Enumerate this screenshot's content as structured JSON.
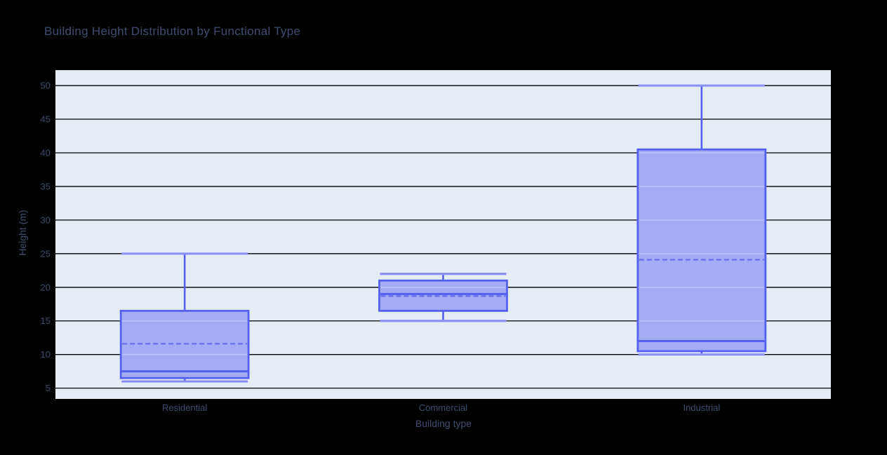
{
  "chart_data": {
    "type": "box",
    "title": "Building Height Distribution by Functional Type",
    "xlabel": "Building type",
    "ylabel": "Height (m)",
    "categories": [
      "Residential",
      "Commercial",
      "Industrial"
    ],
    "series": [
      {
        "name": "Residential",
        "min": 6,
        "q1": 6.5,
        "median": 7.5,
        "q3": 16.5,
        "max": 25,
        "mean": 11.6
      },
      {
        "name": "Commercial",
        "min": 15,
        "q1": 16.5,
        "median": 19,
        "q3": 21,
        "max": 22,
        "mean": 18.7
      },
      {
        "name": "Industrial",
        "min": 10,
        "q1": 10.5,
        "median": 12,
        "q3": 40.5,
        "max": 50,
        "mean": 24.1
      }
    ],
    "yticks": [
      5,
      10,
      15,
      20,
      25,
      30,
      35,
      40,
      45,
      50
    ],
    "ylim": [
      3.4,
      52.3
    ],
    "grid": true,
    "legend": false,
    "mean_line_style": "dashed",
    "colors": {
      "paper_bg": "#000000",
      "plot_bg": "#e5ecf6",
      "grid": "#000000",
      "box_fill": "#a4aaf4",
      "box_border": "#5560ef",
      "whisker_cap": "#8a91f2",
      "mean_line": "#6b74ee",
      "text": "#3f4e70"
    }
  }
}
